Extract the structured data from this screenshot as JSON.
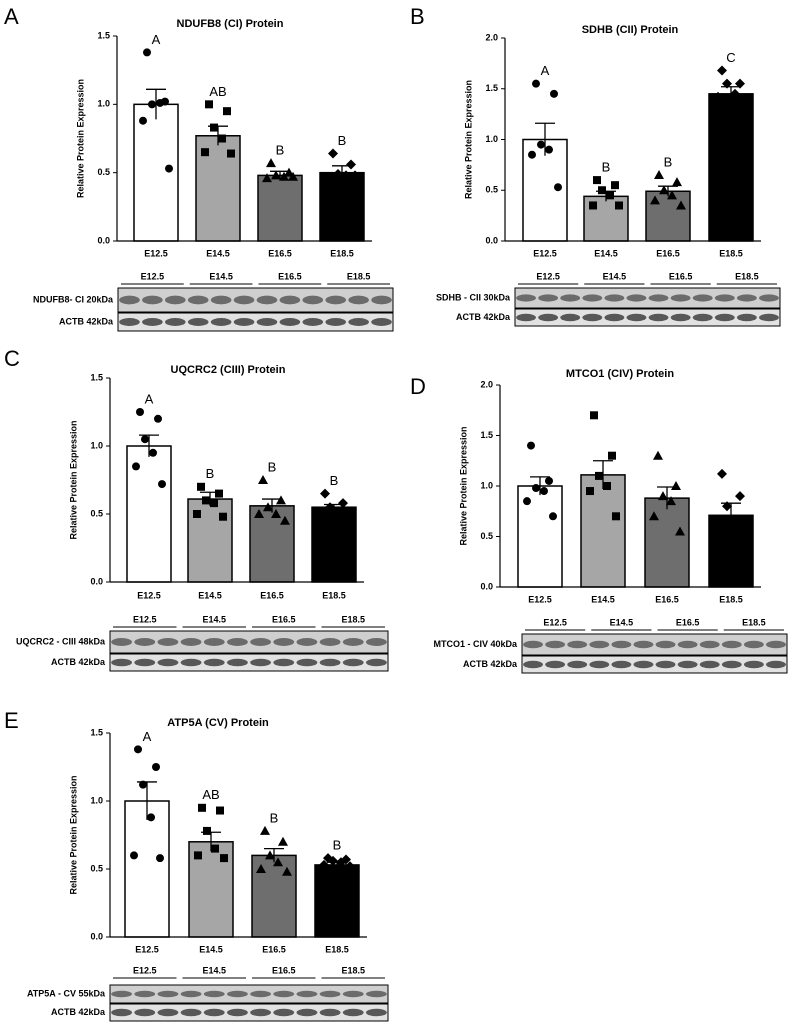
{
  "chart_data": [
    {
      "type": "bar",
      "panel": "A",
      "title": "NDUFB8 (CI) Protein",
      "y_label": "Relative Protein Expression",
      "categories": [
        "E12.5",
        "E14.5",
        "E16.5",
        "E18.5"
      ],
      "values": [
        1.0,
        0.77,
        0.48,
        0.5
      ],
      "errors": [
        0.11,
        0.07,
        0.03,
        0.05
      ],
      "points": [
        [
          1.38,
          1.02,
          1.0,
          1.01,
          0.88,
          0.53
        ],
        [
          1.0,
          0.95,
          0.83,
          0.75,
          0.65,
          0.64
        ],
        [
          0.57,
          0.5,
          0.48,
          0.47,
          0.46,
          0.47
        ],
        [
          0.64,
          0.56,
          0.49,
          0.48,
          0.47,
          0.48
        ]
      ],
      "significance": [
        "A",
        "AB",
        "B",
        "B"
      ],
      "ylim": [
        0,
        1.5
      ],
      "yticks": [
        {
          "value": 0,
          "label": "0.0"
        },
        0.5,
        {
          "value": 1,
          "label": "1.0"
        },
        1.5
      ],
      "colors": [
        "#ffffff",
        "#a6a6a6",
        "#6e6e6e",
        "#000000"
      ],
      "markers": [
        "circle",
        "square",
        "triangle",
        "diamond"
      ],
      "blot": {
        "lanes": [
          "E12.5",
          "E14.5",
          "E16.5",
          "E18.5"
        ],
        "rows": [
          "NDUFB8- CI 20kDa",
          "ACTB 42kDa"
        ]
      }
    },
    {
      "type": "bar",
      "panel": "B",
      "title": "SDHB (CII) Protein",
      "y_label": "Relative Protein Expression",
      "categories": [
        "E12.5",
        "E14.5",
        "E16.5",
        "E18.5"
      ],
      "values": [
        1.0,
        0.44,
        0.49,
        1.45
      ],
      "errors": [
        0.16,
        0.05,
        0.05,
        0.07
      ],
      "points": [
        [
          1.55,
          1.45,
          0.95,
          0.9,
          0.85,
          0.53
        ],
        [
          0.6,
          0.55,
          0.5,
          0.45,
          0.35,
          0.35
        ],
        [
          0.65,
          0.58,
          0.5,
          0.45,
          0.4,
          0.35
        ],
        [
          1.68,
          1.55,
          1.55,
          1.45,
          1.42,
          1.4
        ]
      ],
      "significance": [
        "A",
        "B",
        "B",
        "C"
      ],
      "ylim": [
        0,
        2
      ],
      "yticks": [
        {
          "value": 0,
          "label": "0.0"
        },
        0.5,
        {
          "value": 1,
          "label": "1.0"
        },
        1.5,
        {
          "value": 2,
          "label": "2.0"
        }
      ],
      "colors": [
        "#ffffff",
        "#a6a6a6",
        "#6e6e6e",
        "#000000"
      ],
      "markers": [
        "circle",
        "square",
        "triangle",
        "diamond"
      ],
      "blot": {
        "lanes": [
          "E12.5",
          "E14.5",
          "E16.5",
          "E18.5"
        ],
        "rows": [
          "SDHB - CII 30kDa",
          "ACTB 42kDa"
        ]
      }
    },
    {
      "type": "bar",
      "panel": "C",
      "title": "UQCRC2 (CIII) Protein",
      "y_label": "Relative Protein Expression",
      "categories": [
        "E12.5",
        "E14.5",
        "E16.5",
        "E18.5"
      ],
      "values": [
        1.0,
        0.61,
        0.56,
        0.55
      ],
      "errors": [
        0.08,
        0.05,
        0.05,
        0.02
      ],
      "points": [
        [
          1.25,
          1.2,
          1.05,
          0.95,
          0.85,
          0.72
        ],
        [
          0.7,
          0.65,
          0.6,
          0.58,
          0.5,
          0.48
        ],
        [
          0.75,
          0.6,
          0.55,
          0.5,
          0.5,
          0.45
        ],
        [
          0.65,
          0.58,
          0.55,
          0.52,
          0.5,
          0.48
        ]
      ],
      "significance": [
        "A",
        "B",
        "B",
        "B"
      ],
      "ylim": [
        0,
        1.5
      ],
      "yticks": [
        {
          "value": 0,
          "label": "0.0"
        },
        0.5,
        {
          "value": 1,
          "label": "1.0"
        },
        1.5
      ],
      "colors": [
        "#ffffff",
        "#a6a6a6",
        "#6e6e6e",
        "#000000"
      ],
      "markers": [
        "circle",
        "square",
        "triangle",
        "diamond"
      ],
      "blot": {
        "lanes": [
          "E12.5",
          "E14.5",
          "E16.5",
          "E18.5"
        ],
        "rows": [
          "UQCRC2 - CIII 48kDa",
          "ACTB 42kDa"
        ]
      }
    },
    {
      "type": "bar",
      "panel": "D",
      "title": "MTCO1 (CIV) Protein",
      "y_label": "Relative Protein Expression",
      "categories": [
        "E12.5",
        "E14.5",
        "E16.5",
        "E18.5"
      ],
      "values": [
        1.0,
        1.11,
        0.88,
        0.71
      ],
      "errors": [
        0.09,
        0.14,
        0.11,
        0.12
      ],
      "points": [
        [
          1.4,
          1.05,
          0.98,
          0.95,
          0.85,
          0.7
        ],
        [
          1.7,
          1.3,
          1.1,
          1.0,
          0.95,
          0.7
        ],
        [
          1.3,
          1.0,
          0.9,
          0.85,
          0.7,
          0.55
        ],
        [
          1.12,
          0.9,
          0.8,
          0.6,
          0.45,
          0.4
        ]
      ],
      "ylim": [
        0,
        2
      ],
      "yticks": [
        {
          "value": 0,
          "label": "0.0"
        },
        0.5,
        {
          "value": 1,
          "label": "1.0"
        },
        1.5,
        {
          "value": 2,
          "label": "2.0"
        }
      ],
      "colors": [
        "#ffffff",
        "#a6a6a6",
        "#6e6e6e",
        "#000000"
      ],
      "markers": [
        "circle",
        "square",
        "triangle",
        "diamond"
      ],
      "blot": {
        "lanes": [
          "E12.5",
          "E14.5",
          "E16.5",
          "E18.5"
        ],
        "rows": [
          "MTCO1 - CIV 40kDa",
          "ACTB 42kDa"
        ]
      }
    },
    {
      "type": "bar",
      "panel": "E",
      "title": "ATP5A (CV) Protein",
      "y_label": "Relative Protein Expression",
      "categories": [
        "E12.5",
        "E14.5",
        "E16.5",
        "E18.5"
      ],
      "values": [
        1.0,
        0.7,
        0.6,
        0.53
      ],
      "errors": [
        0.14,
        0.07,
        0.05,
        0.02
      ],
      "points": [
        [
          1.38,
          1.25,
          1.12,
          0.88,
          0.6,
          0.58
        ],
        [
          0.95,
          0.93,
          0.78,
          0.65,
          0.6,
          0.58
        ],
        [
          0.78,
          0.7,
          0.6,
          0.55,
          0.5,
          0.48
        ],
        [
          0.58,
          0.57,
          0.56,
          0.55,
          0.53,
          0.52
        ]
      ],
      "significance": [
        "A",
        "AB",
        "B",
        "B"
      ],
      "ylim": [
        0,
        1.5
      ],
      "yticks": [
        {
          "value": 0,
          "label": "0.0"
        },
        0.5,
        {
          "value": 1,
          "label": "1.0"
        },
        1.5
      ],
      "colors": [
        "#ffffff",
        "#a6a6a6",
        "#6e6e6e",
        "#000000"
      ],
      "markers": [
        "circle",
        "square",
        "triangle",
        "diamond"
      ],
      "blot": {
        "lanes": [
          "E12.5",
          "E14.5",
          "E16.5",
          "E18.5"
        ],
        "rows": [
          "ATP5A - CV 55kDa",
          "ACTB 42kDa"
        ]
      }
    }
  ]
}
